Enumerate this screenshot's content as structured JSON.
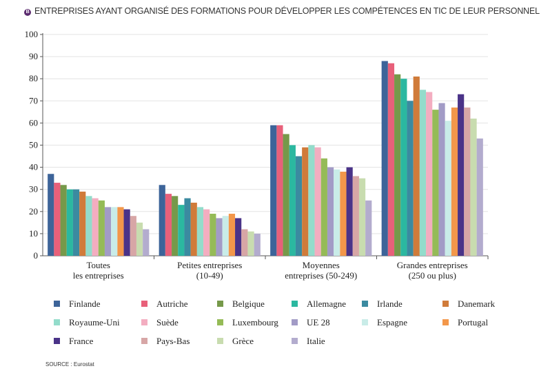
{
  "title_badge": "B",
  "chart_data": {
    "type": "bar",
    "title": "ENTREPRISES AYANT ORGANISÉ DES FORMATIONS POUR DÉVELOPPER LES COMPÉTENCES EN TIC DE LEUR PERSONNEL",
    "categories": [
      [
        "Toutes",
        "les entreprises"
      ],
      [
        "Petites entreprises",
        "(10-49)"
      ],
      [
        "Moyennes",
        "entreprises (50-249)"
      ],
      [
        "Grandes entreprises",
        "(250 ou plus)"
      ]
    ],
    "ylim": [
      0,
      100
    ],
    "yticks": [
      0,
      10,
      20,
      30,
      40,
      50,
      60,
      70,
      80,
      90,
      100
    ],
    "grid": true,
    "legend_position": "bottom",
    "series": [
      {
        "name": "Finlande",
        "color": "#3d6499",
        "values": [
          37,
          32,
          59,
          88
        ]
      },
      {
        "name": "Autriche",
        "color": "#e8607a",
        "values": [
          33,
          28,
          59,
          87
        ]
      },
      {
        "name": "Belgique",
        "color": "#76994a",
        "values": [
          32,
          27,
          55,
          82
        ]
      },
      {
        "name": "Allemagne",
        "color": "#2bb8a0",
        "values": [
          30,
          23,
          50,
          80
        ]
      },
      {
        "name": "Irlande",
        "color": "#3b8aa0",
        "values": [
          30,
          26,
          45,
          70
        ]
      },
      {
        "name": "Danemark",
        "color": "#d07b3a",
        "values": [
          29,
          24,
          49,
          81
        ]
      },
      {
        "name": "Royaume-Uni",
        "color": "#93dccb",
        "values": [
          27,
          22,
          50,
          75
        ]
      },
      {
        "name": "Suède",
        "color": "#f3adc0",
        "values": [
          26,
          21,
          49,
          74
        ]
      },
      {
        "name": "Luxembourg",
        "color": "#95bb57",
        "values": [
          25,
          19,
          44,
          66
        ]
      },
      {
        "name": "UE 28",
        "color": "#a29bc6",
        "values": [
          22,
          17,
          40,
          69
        ]
      },
      {
        "name": "Espagne",
        "color": "#c9ece8",
        "values": [
          22,
          18,
          39,
          61
        ]
      },
      {
        "name": "Portugal",
        "color": "#f3974a",
        "values": [
          22,
          19,
          38,
          67
        ]
      },
      {
        "name": "France",
        "color": "#4a3388",
        "values": [
          21,
          17,
          40,
          73
        ]
      },
      {
        "name": "Pays-Bas",
        "color": "#d7a6a6",
        "values": [
          18,
          12,
          36,
          67
        ]
      },
      {
        "name": "Grèce",
        "color": "#c8dcaf",
        "values": [
          15,
          11,
          35,
          62
        ]
      },
      {
        "name": "Italie",
        "color": "#b3acce",
        "values": [
          12,
          10,
          25,
          53
        ]
      }
    ]
  },
  "source": "SOURCE : Eurostat"
}
